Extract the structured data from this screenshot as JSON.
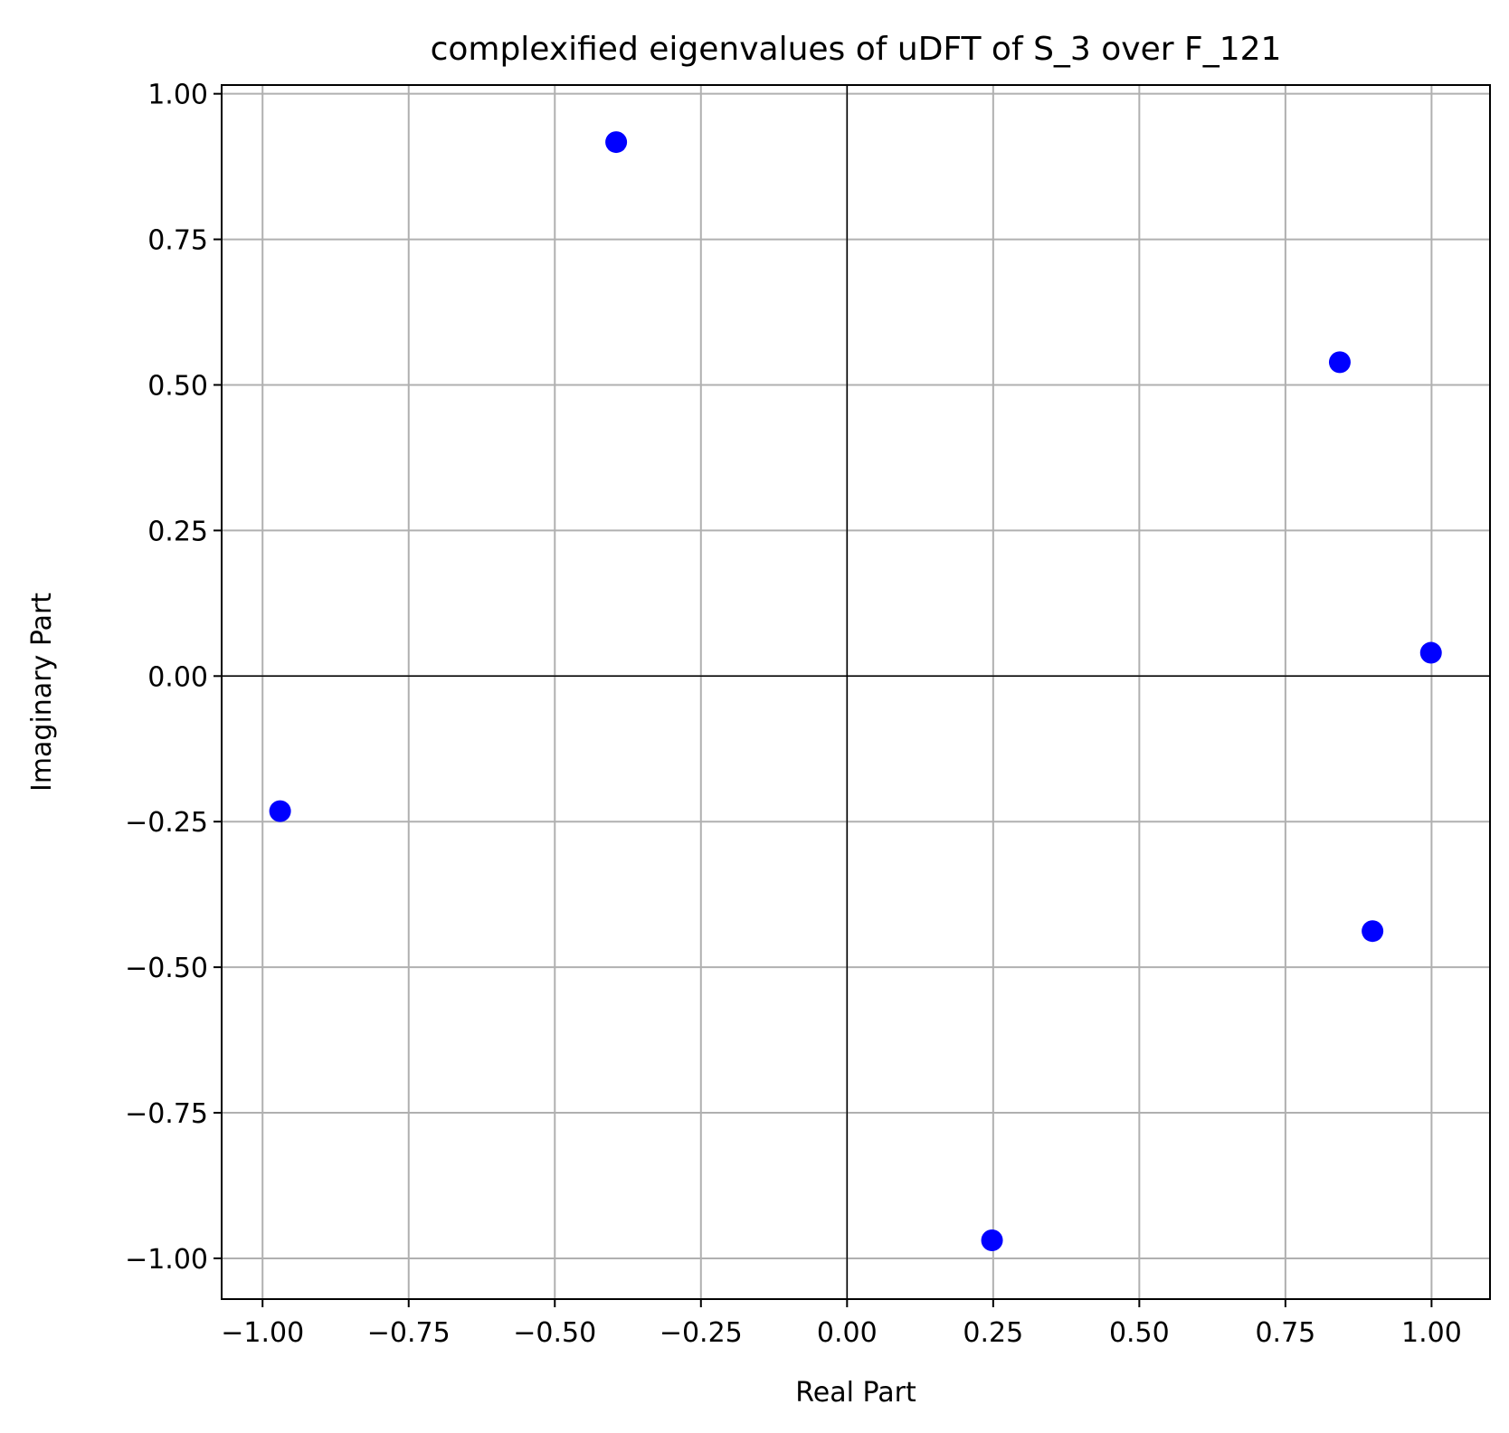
{
  "chart_data": {
    "type": "scatter",
    "title": "complexified eigenvalues of uDFT of S_3 over F_121",
    "xlabel": "Real Part",
    "ylabel": "Imaginary Part",
    "xlim": [
      -1.07,
      1.1
    ],
    "ylim": [
      -1.07,
      1.015
    ],
    "xticks": [
      -1.0,
      -0.75,
      -0.5,
      -0.25,
      0.0,
      0.25,
      0.5,
      0.75,
      1.0
    ],
    "yticks": [
      -1.0,
      -0.75,
      -0.5,
      -0.25,
      0.0,
      0.25,
      0.5,
      0.75,
      1.0
    ],
    "xtick_labels": [
      "−1.00",
      "−0.75",
      "−0.50",
      "−0.25",
      "0.00",
      "0.25",
      "0.50",
      "0.75",
      "1.00"
    ],
    "ytick_labels": [
      "−1.00",
      "−0.75",
      "−0.50",
      "−0.25",
      "0.00",
      "0.25",
      "0.50",
      "0.75",
      "1.00"
    ],
    "grid": true,
    "zero_lines": true,
    "marker_color": "#0000ff",
    "grid_color": "#b0b0b0",
    "series": [
      {
        "x": [
          -0.395,
          0.843,
          0.999,
          -0.97,
          0.899,
          0.248
        ],
        "y": [
          0.917,
          0.539,
          0.04,
          -0.232,
          -0.438,
          -0.969
        ]
      }
    ]
  }
}
